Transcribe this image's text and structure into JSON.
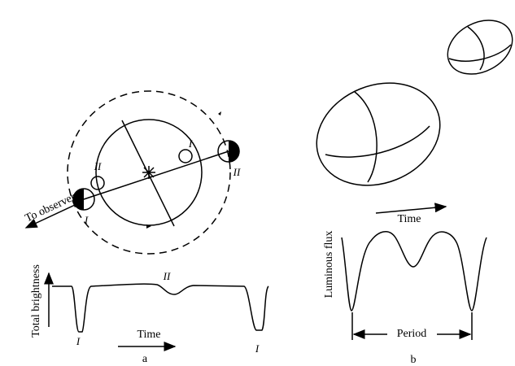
{
  "panel_a": {
    "orbit_labels": {
      "to_observer": "To observer",
      "inner_I": "I",
      "inner_II": "II",
      "outer_I": "I",
      "outer_II": "II"
    },
    "light_curve": {
      "y_label": "Total brightness",
      "x_label": "Time",
      "minimum_1": "I",
      "maximum": "II",
      "minimum_2": "I"
    },
    "caption": "a"
  },
  "panel_b": {
    "time_label": "Time",
    "light_curve": {
      "y_label": "Luminous flux",
      "period_label": "Period"
    },
    "caption": "b"
  }
}
